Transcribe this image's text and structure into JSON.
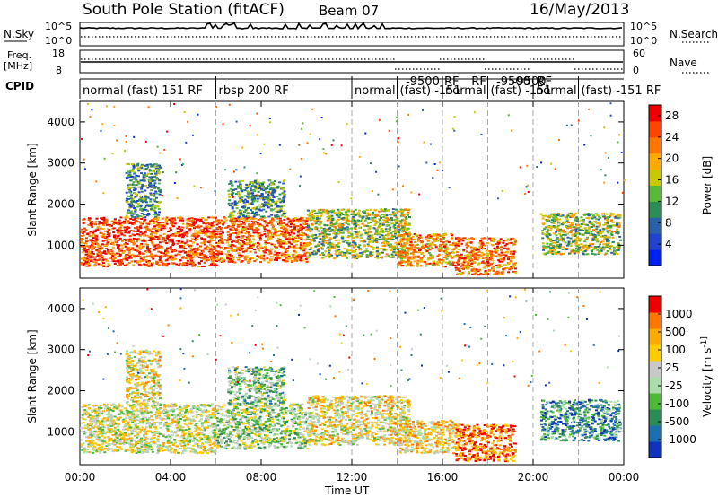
{
  "header": {
    "station": "South Pole Station (fitACF)",
    "beam": "Beam 07",
    "date": "16/May/2013"
  },
  "top_panels": {
    "nsky_label": "N.Sky",
    "nsearch_label": "N.Search",
    "freq_label_1": "Freq.",
    "freq_label_2": "[MHz]",
    "nave_label": "Nave",
    "cpid_label": "CPID",
    "nsky_ticks": [
      "10^5",
      "10^0"
    ],
    "nsearch_ticks": [
      "10^5",
      "10^0"
    ],
    "freq_ticks": [
      "18",
      "8"
    ],
    "nave_ticks": [
      "60",
      "0"
    ]
  },
  "cpid_segments": [
    {
      "start_h": 0.0,
      "end_h": 6.0,
      "label": "normal (fast) 151 RF"
    },
    {
      "start_h": 6.0,
      "end_h": 12.0,
      "label": "rbsp 200 RF"
    },
    {
      "start_h": 12.0,
      "end_h": 14.0,
      "label": "normal"
    },
    {
      "start_h": 14.0,
      "end_h": 16.0,
      "label": "(fast)  -151"
    },
    {
      "start_h": 16.0,
      "end_h": 18.0,
      "label": "normal"
    },
    {
      "start_h": 18.0,
      "end_h": 20.0,
      "label": "(fast)  -151"
    },
    {
      "start_h": 20.0,
      "end_h": 22.0,
      "label": "normal"
    },
    {
      "start_h": 22.0,
      "end_h": 24.0,
      "label": "(fast)  -151 RF"
    }
  ],
  "cpid_overlays": [
    {
      "at_h": 14.3,
      "label": "-9500"
    },
    {
      "at_h": 16.0,
      "label": "RF"
    },
    {
      "at_h": 17.2,
      "label": "RF"
    },
    {
      "at_h": 18.3,
      "label": "-9500"
    },
    {
      "at_h": 19.0,
      "label": "-9500"
    },
    {
      "at_h": 20.1,
      "label": "RF"
    }
  ],
  "chart_data": [
    {
      "type": "heatmap",
      "panel": "power",
      "xlabel": "Time UT",
      "ylabel": "Slant Range [km]",
      "xlim": [
        0,
        24
      ],
      "ylim": [
        200,
        4500
      ],
      "x_ticks": [
        "00:00",
        "04:00",
        "08:00",
        "12:00",
        "16:00",
        "20:00",
        "00:00"
      ],
      "y_ticks": [
        1000,
        2000,
        3000,
        4000
      ],
      "colorbar": {
        "label": "Power [dB]",
        "ticks": [
          4,
          8,
          12,
          16,
          20,
          24,
          28
        ],
        "range": [
          0,
          30
        ],
        "colors": [
          "#0022ee",
          "#2244cc",
          "#2b5fa8",
          "#2e8b57",
          "#5cb83a",
          "#c8c800",
          "#ffaa00",
          "#ff7700",
          "#ff4400",
          "#ee0000"
        ]
      },
      "scatter_regions": [
        {
          "t0": 0.0,
          "t1": 6.0,
          "r0": 500,
          "r1": 1700,
          "level": 0.85
        },
        {
          "t0": 2.0,
          "t1": 3.5,
          "r0": 1700,
          "r1": 3000,
          "level": 0.35
        },
        {
          "t0": 6.0,
          "t1": 10.0,
          "r0": 600,
          "r1": 1700,
          "level": 0.8
        },
        {
          "t0": 6.5,
          "t1": 9.0,
          "r0": 1700,
          "r1": 2600,
          "level": 0.35
        },
        {
          "t0": 10.0,
          "t1": 14.5,
          "r0": 700,
          "r1": 1900,
          "level": 0.5
        },
        {
          "t0": 14.0,
          "t1": 16.5,
          "r0": 500,
          "r1": 1300,
          "level": 0.7
        },
        {
          "t0": 16.5,
          "t1": 19.2,
          "r0": 300,
          "r1": 1200,
          "level": 0.75
        },
        {
          "t0": 20.3,
          "t1": 23.8,
          "r0": 800,
          "r1": 1800,
          "level": 0.5
        }
      ],
      "dashed_boundaries_h": [
        6.0,
        12.0,
        14.0,
        16.0,
        18.0,
        20.0,
        22.0
      ]
    },
    {
      "type": "heatmap",
      "panel": "velocity",
      "xlabel": "Time UT",
      "ylabel": "Slant Range [km]",
      "xlim": [
        0,
        24
      ],
      "ylim": [
        200,
        4500
      ],
      "x_ticks": [
        "00:00",
        "04:00",
        "08:00",
        "12:00",
        "16:00",
        "20:00",
        "00:00"
      ],
      "y_ticks": [
        1000,
        2000,
        3000,
        4000
      ],
      "colorbar": {
        "label": "Velocity [m s^-1]",
        "ticks": [
          "1000",
          "500",
          "100",
          "25",
          "-25",
          "-100",
          "-500",
          "-1000"
        ],
        "colors": [
          "#1133bb",
          "#1f6fb0",
          "#2e8b57",
          "#4db83a",
          "#aaddaa",
          "#c8c8c8",
          "#ffcc00",
          "#ffaa00",
          "#ff7700",
          "#ee0000"
        ]
      },
      "scatter_regions": [
        {
          "t0": 0.0,
          "t1": 6.0,
          "r0": 500,
          "r1": 1700,
          "level": 0.55
        },
        {
          "t0": 2.0,
          "t1": 3.5,
          "r0": 1700,
          "r1": 3000,
          "level": 0.6
        },
        {
          "t0": 6.0,
          "t1": 10.0,
          "r0": 600,
          "r1": 1700,
          "level": 0.45
        },
        {
          "t0": 6.5,
          "t1": 9.0,
          "r0": 1700,
          "r1": 2600,
          "level": 0.4
        },
        {
          "t0": 10.0,
          "t1": 14.5,
          "r0": 700,
          "r1": 1900,
          "level": 0.6
        },
        {
          "t0": 14.0,
          "t1": 16.5,
          "r0": 500,
          "r1": 1300,
          "level": 0.65
        },
        {
          "t0": 16.5,
          "t1": 19.2,
          "r0": 300,
          "r1": 1200,
          "level": 0.85
        },
        {
          "t0": 20.3,
          "t1": 23.8,
          "r0": 800,
          "r1": 1800,
          "level": 0.25
        }
      ],
      "dashed_boundaries_h": [
        6.0,
        12.0,
        14.0,
        16.0,
        18.0,
        20.0,
        22.0
      ]
    }
  ]
}
